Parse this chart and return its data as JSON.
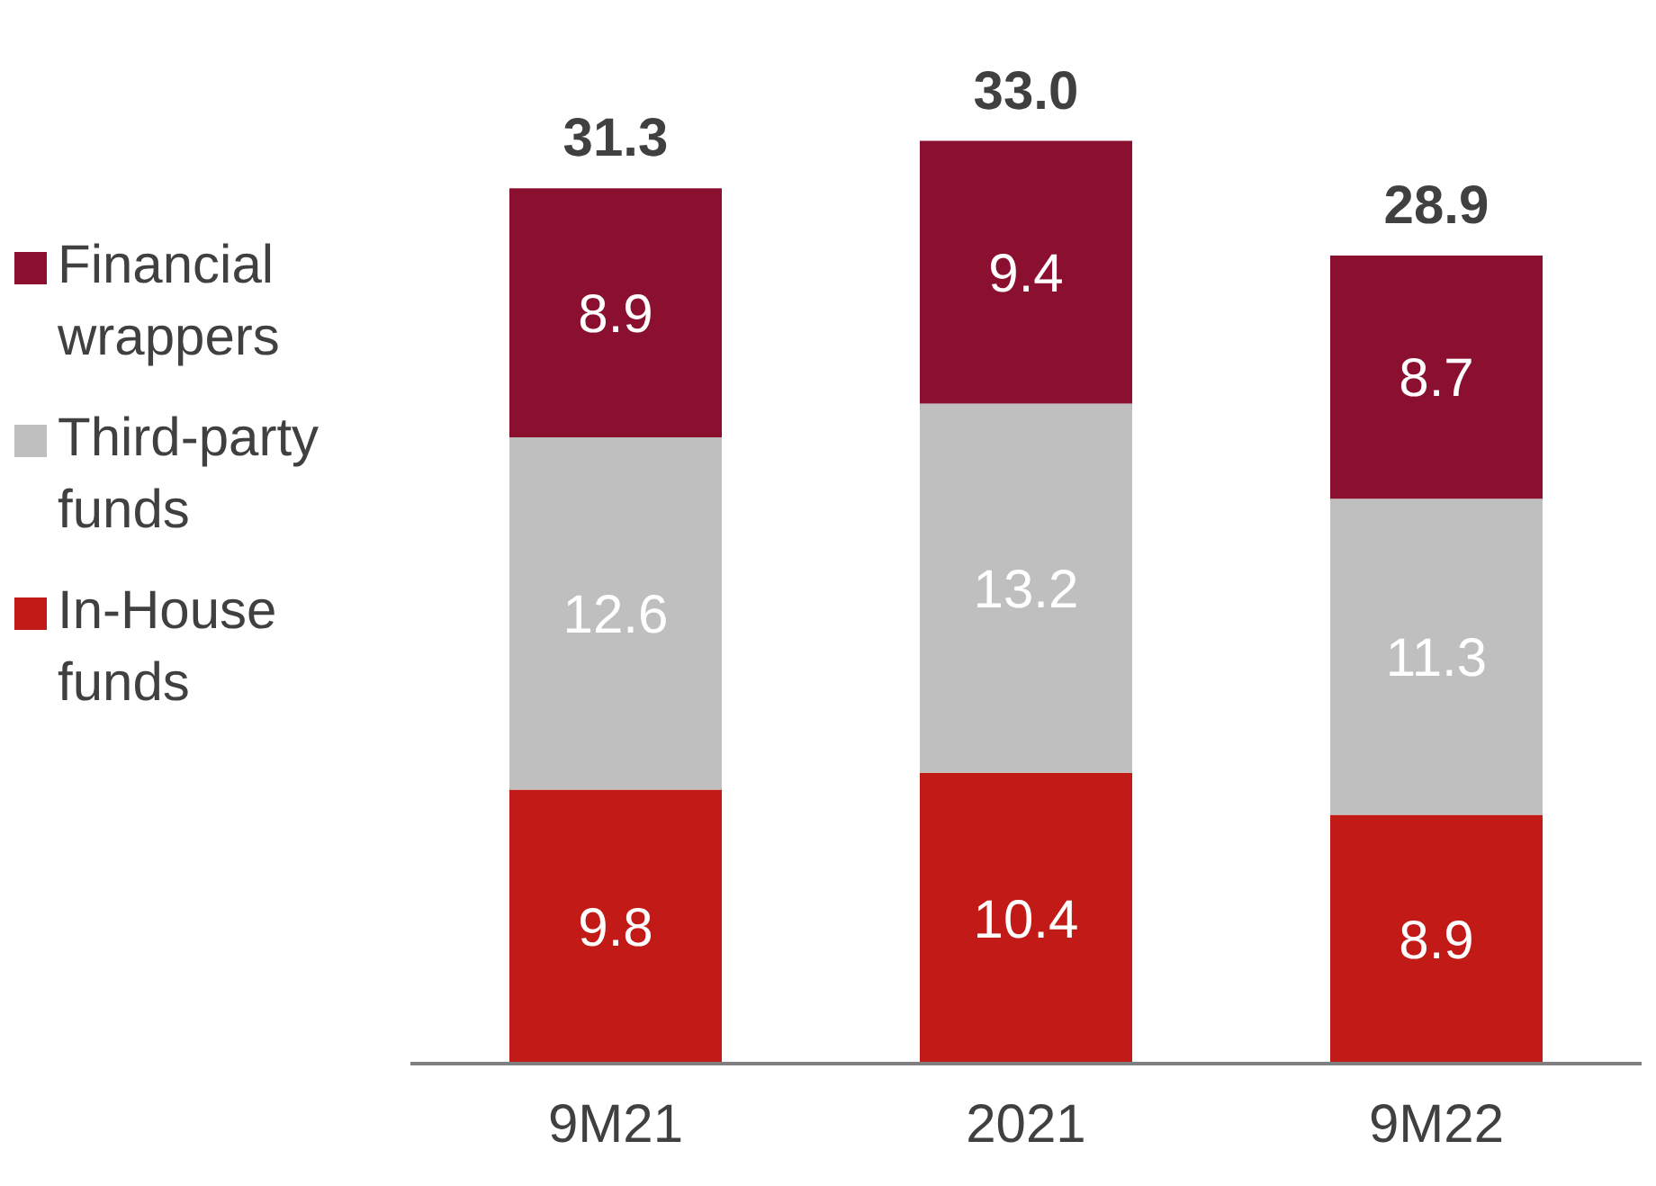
{
  "chart_data": {
    "type": "bar",
    "stacked": true,
    "categories": [
      "9M21",
      "2021",
      "9M22"
    ],
    "series": [
      {
        "name": "In-House funds",
        "color": "#c21b17",
        "values": [
          9.8,
          10.4,
          8.9
        ]
      },
      {
        "name": "Third-party funds",
        "color": "#bfbfbf",
        "values": [
          12.6,
          13.2,
          11.3
        ]
      },
      {
        "name": "Financial wrappers",
        "color": "#8b1030",
        "values": [
          8.9,
          9.4,
          8.7
        ]
      }
    ],
    "totals": [
      "31.3",
      "33.0",
      "28.9"
    ],
    "data_labels": true,
    "legend": "left"
  }
}
